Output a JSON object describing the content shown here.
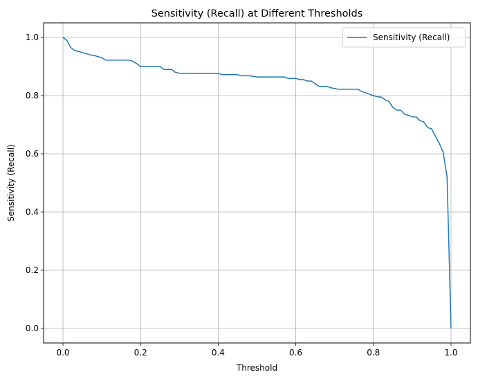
{
  "chart_data": {
    "type": "line",
    "title": "Sensitivity (Recall) at Different Thresholds",
    "xlabel": "Threshold",
    "ylabel": "Sensitivity (Recall)",
    "xlim": [
      -0.05,
      1.05
    ],
    "ylim": [
      -0.05,
      1.05
    ],
    "xticks": [
      0.0,
      0.2,
      0.4,
      0.6,
      0.8,
      1.0
    ],
    "xtick_labels": [
      "0.0",
      "0.2",
      "0.4",
      "0.6",
      "0.8",
      "1.0"
    ],
    "yticks": [
      0.0,
      0.2,
      0.4,
      0.6,
      0.8,
      1.0
    ],
    "ytick_labels": [
      "0.0",
      "0.2",
      "0.4",
      "0.6",
      "0.8",
      "1.0"
    ],
    "grid": true,
    "legend_position": "upper right",
    "series": [
      {
        "name": "Sensitivity (Recall)",
        "color": "#1f77b4",
        "x": [
          0.0,
          0.01,
          0.02,
          0.03,
          0.05,
          0.07,
          0.08,
          0.1,
          0.11,
          0.13,
          0.15,
          0.16,
          0.17,
          0.18,
          0.19,
          0.2,
          0.22,
          0.24,
          0.25,
          0.26,
          0.28,
          0.29,
          0.3,
          0.32,
          0.34,
          0.36,
          0.38,
          0.4,
          0.41,
          0.43,
          0.45,
          0.46,
          0.48,
          0.5,
          0.52,
          0.54,
          0.56,
          0.57,
          0.58,
          0.6,
          0.61,
          0.62,
          0.63,
          0.64,
          0.66,
          0.68,
          0.69,
          0.71,
          0.73,
          0.75,
          0.76,
          0.77,
          0.79,
          0.8,
          0.81,
          0.82,
          0.83,
          0.84,
          0.85,
          0.86,
          0.87,
          0.88,
          0.89,
          0.9,
          0.91,
          0.92,
          0.93,
          0.94,
          0.95,
          0.96,
          0.97,
          0.98,
          0.99,
          1.0
        ],
        "y": [
          1.0,
          0.99,
          0.965,
          0.955,
          0.948,
          0.94,
          0.938,
          0.93,
          0.922,
          0.922,
          0.922,
          0.922,
          0.922,
          0.918,
          0.91,
          0.9,
          0.9,
          0.9,
          0.9,
          0.89,
          0.89,
          0.88,
          0.877,
          0.877,
          0.877,
          0.877,
          0.877,
          0.877,
          0.872,
          0.872,
          0.872,
          0.868,
          0.868,
          0.864,
          0.864,
          0.864,
          0.864,
          0.864,
          0.859,
          0.859,
          0.855,
          0.855,
          0.85,
          0.85,
          0.832,
          0.832,
          0.827,
          0.822,
          0.822,
          0.822,
          0.822,
          0.814,
          0.805,
          0.8,
          0.796,
          0.795,
          0.786,
          0.78,
          0.76,
          0.75,
          0.75,
          0.737,
          0.732,
          0.727,
          0.727,
          0.714,
          0.709,
          0.69,
          0.686,
          0.66,
          0.636,
          0.605,
          0.52,
          0.0
        ]
      }
    ]
  }
}
